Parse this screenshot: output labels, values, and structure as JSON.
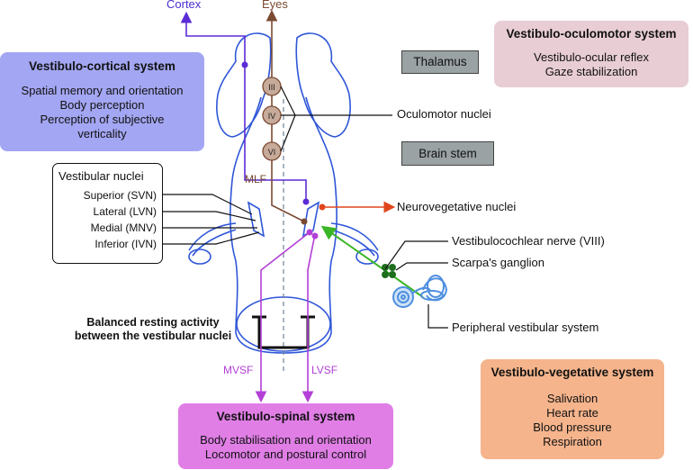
{
  "top_labels": {
    "cortex": "Cortex",
    "eyes": "Eyes"
  },
  "cortical": {
    "title": "Vestibulo-cortical system",
    "lines": [
      "Spatial memory and orientation",
      "Body perception",
      "Perception of subjective",
      "verticality"
    ]
  },
  "oculomotor_system": {
    "title": "Vestibulo-oculomotor system",
    "lines": [
      "Vestibulo-ocular reflex",
      "Gaze stabilization"
    ]
  },
  "thalamus": "Thalamus",
  "brain_stem": "Brain stem",
  "oculomotor_nuclei": "Oculomotor nuclei",
  "nuclei_numbers": [
    "III",
    "IV",
    "VI"
  ],
  "mlf": "MLF",
  "vestibular_nuclei": {
    "title": "Vestibular nuclei",
    "items": [
      "Superior (SVN)",
      "Lateral (LVN)",
      "Medial (MNV)",
      "Inferior (IVN)"
    ]
  },
  "neurovegetative": "Neurovegetative nuclei",
  "nerve": "Vestibulocochlear nerve (VIII)",
  "ganglion": "Scarpa's ganglion",
  "peripheral": "Peripheral vestibular system",
  "balanced": [
    "Balanced resting activity",
    "between the vestibular nuclei"
  ],
  "mvsf": "MVSF",
  "lvsf": "LVSF",
  "vegetative": {
    "title": "Vestibulo-vegetative system",
    "lines": [
      "Salivation",
      "Heart rate",
      "Blood pressure",
      "Respiration"
    ]
  },
  "spinal": {
    "title": "Vestibulo-spinal system",
    "lines": [
      "Body stabilisation and orientation",
      "Locomotor and postural control"
    ]
  },
  "colors": {
    "cortical_bg": "#a3a6f2",
    "oculomotor_bg": "#e8cdd4",
    "vegetative_bg": "#f5b48c",
    "spinal_bg": "#e07ee6",
    "gray_box": "#9aa2a4",
    "brain_outline": "#2f56d8",
    "cortex_path": "#5b2bd6",
    "eyes_path": "#7a4a32",
    "neuro_arrow": "#e0461b",
    "spinal_path": "#b33fd6",
    "nerve": "#3bb526",
    "ganglion": "#1e6e1e"
  }
}
